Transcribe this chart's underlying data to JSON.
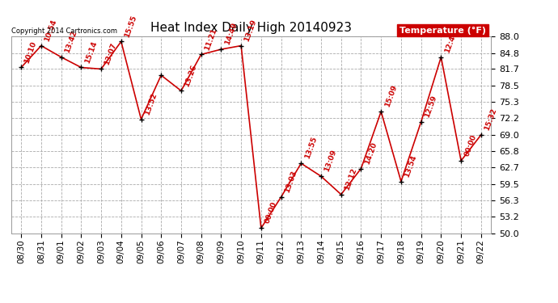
{
  "title": "Heat Index Daily High 20140923",
  "copyright": "Copyright 2014 Cartronics.com",
  "legend_label": "Temperature (°F)",
  "ylim": [
    50.0,
    88.0
  ],
  "yticks": [
    50.0,
    53.2,
    56.3,
    59.5,
    62.7,
    65.8,
    69.0,
    72.2,
    75.3,
    78.5,
    81.7,
    84.8,
    88.0
  ],
  "dates": [
    "08/30",
    "08/31",
    "09/01",
    "09/02",
    "09/03",
    "09/04",
    "09/05",
    "09/06",
    "09/07",
    "09/08",
    "09/09",
    "09/10",
    "09/11",
    "09/12",
    "09/13",
    "09/14",
    "09/15",
    "09/16",
    "09/17",
    "09/18",
    "09/19",
    "09/20",
    "09/21",
    "09/22"
  ],
  "values": [
    82.0,
    86.2,
    84.0,
    82.0,
    81.7,
    87.0,
    72.0,
    80.5,
    77.5,
    84.5,
    85.5,
    86.2,
    51.0,
    57.0,
    63.5,
    61.0,
    57.5,
    62.5,
    73.5,
    60.0,
    71.5,
    84.0,
    64.0,
    69.0
  ],
  "time_labels": [
    "10:10",
    "10:54",
    "13:42",
    "15:14",
    "13:07",
    "15:55",
    "13:52",
    "",
    "13:26",
    "11:21",
    "14:49",
    "13:19",
    "00:00",
    "13:03",
    "13:55",
    "13:09",
    "12:12",
    "14:20",
    "15:09",
    "13:54",
    "12:59",
    "12:40",
    "00:00",
    "15:32"
  ],
  "line_color": "#cc0000",
  "marker_color": "#000000",
  "bg_color": "#ffffff",
  "grid_color": "#aaaaaa",
  "text_color_red": "#cc0000",
  "text_color_black": "#000000",
  "title_fontsize": 11,
  "tick_fontsize": 8,
  "xlabel_fontsize": 7.5,
  "label_fontsize": 6.5
}
